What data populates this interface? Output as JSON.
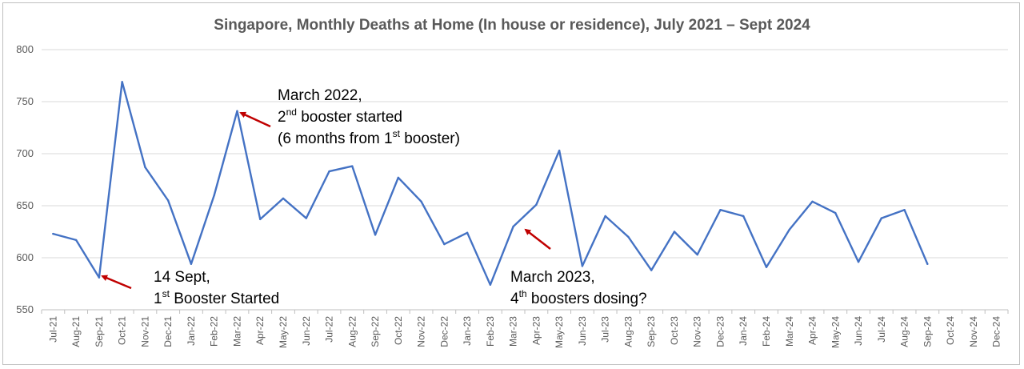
{
  "chart_data": {
    "type": "line",
    "title": "Singapore, Monthly Deaths at Home (In house or residence), July 2021 – Sept 2024",
    "xlabel": "",
    "ylabel": "",
    "ylim": [
      550,
      800
    ],
    "yticks": [
      550,
      600,
      650,
      700,
      750,
      800
    ],
    "grid": true,
    "legend": "none",
    "categories": [
      "Jul-21",
      "Aug-21",
      "Sep-21",
      "Oct-21",
      "Nov-21",
      "Dec-21",
      "Jan-22",
      "Feb-22",
      "Mar-22",
      "Apr-22",
      "May-22",
      "Jun-22",
      "Jul-22",
      "Aug-22",
      "Sep-22",
      "Oct-22",
      "Nov-22",
      "Dec-22",
      "Jan-23",
      "Feb-23",
      "Mar-23",
      "Apr-23",
      "May-23",
      "Jun-23",
      "Jul-23",
      "Aug-23",
      "Sep-23",
      "Oct-23",
      "Nov-23",
      "Dec-23",
      "Jan-24",
      "Feb-24",
      "Mar-24",
      "Apr-24",
      "May-24",
      "Jun-24",
      "Jul-24",
      "Aug-24",
      "Sep-24",
      "Oct-24",
      "Nov-24",
      "Dec-24"
    ],
    "series": [
      {
        "color": "#4472c4",
        "values": [
          623,
          617,
          581,
          769,
          687,
          655,
          594,
          660,
          741,
          637,
          657,
          638,
          683,
          688,
          622,
          677,
          654,
          613,
          624,
          574,
          630,
          651,
          703,
          592,
          640,
          620,
          588,
          625,
          603,
          646,
          640,
          591,
          627,
          654,
          643,
          596,
          638,
          646,
          594,
          null,
          null,
          null
        ]
      }
    ],
    "annotations": [
      {
        "id": "sept2021",
        "x_category": "Sep-21",
        "y_value": 581,
        "lines": [
          [
            {
              "t": "14 Sept,"
            }
          ],
          [
            {
              "t": "1"
            },
            {
              "t": "st",
              "sup": true
            },
            {
              "t": " Booster Started"
            }
          ]
        ]
      },
      {
        "id": "mar2022",
        "x_category": "Mar-22",
        "y_value": 741,
        "lines": [
          [
            {
              "t": "March 2022,"
            }
          ],
          [
            {
              "t": "2"
            },
            {
              "t": "nd",
              "sup": true
            },
            {
              "t": " booster started"
            }
          ],
          [
            {
              "t": "(6 months from 1"
            },
            {
              "t": "st",
              "sup": true
            },
            {
              "t": " booster)"
            }
          ]
        ]
      },
      {
        "id": "mar2023",
        "x_category": "Mar-23",
        "y_value": 630,
        "lines": [
          [
            {
              "t": "March 2023,"
            }
          ],
          [
            {
              "t": "4"
            },
            {
              "t": "th",
              "sup": true
            },
            {
              "t": " boosters dosing?"
            }
          ]
        ]
      }
    ],
    "arrow_color": "#c00000"
  }
}
